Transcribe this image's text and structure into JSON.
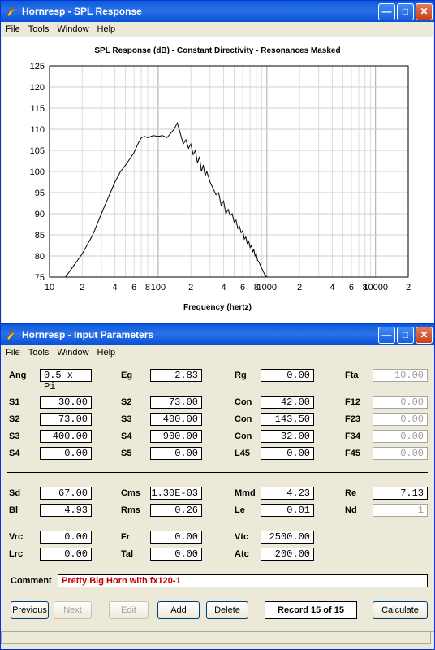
{
  "window1": {
    "title": "Hornresp - SPL Response",
    "menu": [
      "File",
      "Tools",
      "Window",
      "Help"
    ]
  },
  "window2": {
    "title": "Hornresp - Input Parameters",
    "menu": [
      "File",
      "Tools",
      "Window",
      "Help"
    ]
  },
  "chart_data": {
    "type": "line",
    "title": "SPL Response (dB) - Constant Directivity - Resonances Masked",
    "xlabel": "Frequency (hertz)",
    "ylabel": "",
    "x_scale": "log",
    "xlim": [
      10,
      20000
    ],
    "ylim": [
      75,
      125
    ],
    "y_ticks": [
      75,
      80,
      85,
      90,
      95,
      100,
      105,
      110,
      115,
      120,
      125
    ],
    "x_tick_labels": [
      "10",
      "2",
      "4",
      "6",
      "8",
      "100",
      "2",
      "4",
      "6",
      "8",
      "1000",
      "2",
      "4",
      "6",
      "8",
      "10000",
      "2"
    ],
    "x_tick_values": [
      10,
      20,
      40,
      60,
      80,
      100,
      200,
      400,
      600,
      800,
      1000,
      2000,
      4000,
      6000,
      8000,
      10000,
      20000
    ],
    "grid": true,
    "series": [
      {
        "color": "#000000",
        "x": [
          14,
          16,
          20,
          25,
          30,
          35,
          40,
          45,
          50,
          55,
          60,
          65,
          70,
          75,
          80,
          90,
          100,
          110,
          120,
          130,
          140,
          150,
          160,
          170,
          180,
          190,
          200,
          210,
          220,
          230,
          240,
          250,
          260,
          270,
          280,
          300,
          320,
          340,
          360,
          380,
          400,
          420,
          440,
          460,
          480,
          500,
          520,
          540,
          560,
          580,
          600,
          620,
          640,
          660,
          680,
          700,
          720,
          740,
          760,
          780,
          800,
          820,
          850,
          880,
          920,
          960,
          1000
        ],
        "y": [
          75,
          77,
          80.5,
          85,
          90,
          94,
          97.5,
          100,
          101.5,
          103,
          104.5,
          106.5,
          108,
          108.3,
          108,
          108.5,
          108.3,
          108.5,
          108,
          109,
          110,
          111.5,
          109,
          106.5,
          107.5,
          105.5,
          106.5,
          104,
          105,
          102,
          103.5,
          100,
          101.5,
          99,
          100,
          97.5,
          96,
          94.5,
          95,
          92,
          93,
          90,
          91,
          89.5,
          90,
          88,
          88.5,
          86.5,
          87,
          85.5,
          86,
          84,
          84.5,
          83,
          83.5,
          82,
          82.5,
          81,
          81.5,
          80,
          80.5,
          79,
          78.5,
          77.5,
          76.5,
          75.5,
          75
        ]
      }
    ]
  },
  "params": {
    "row0": [
      {
        "label": "Ang",
        "value": "0.5 x Pi",
        "disabled": false
      },
      {
        "label": "Eg",
        "value": "2.83",
        "disabled": false
      },
      {
        "label": "Rg",
        "value": "0.00",
        "disabled": false
      },
      {
        "label": "Fta",
        "value": "10.00",
        "disabled": true
      }
    ],
    "row1": [
      {
        "label": "S1",
        "value": "30.00",
        "disabled": false
      },
      {
        "label": "S2",
        "value": "73.00",
        "disabled": false
      },
      {
        "label": "Con",
        "value": "42.00",
        "disabled": false
      },
      {
        "label": "F12",
        "value": "0.00",
        "disabled": true
      }
    ],
    "row2": [
      {
        "label": "S2",
        "value": "73.00",
        "disabled": false
      },
      {
        "label": "S3",
        "value": "400.00",
        "disabled": false
      },
      {
        "label": "Con",
        "value": "143.50",
        "disabled": false
      },
      {
        "label": "F23",
        "value": "0.00",
        "disabled": true
      }
    ],
    "row3": [
      {
        "label": "S3",
        "value": "400.00",
        "disabled": false
      },
      {
        "label": "S4",
        "value": "900.00",
        "disabled": false
      },
      {
        "label": "Con",
        "value": "32.00",
        "disabled": false
      },
      {
        "label": "F34",
        "value": "0.00",
        "disabled": true
      }
    ],
    "row4": [
      {
        "label": "S4",
        "value": "0.00",
        "disabled": false
      },
      {
        "label": "S5",
        "value": "0.00",
        "disabled": false
      },
      {
        "label": "L45",
        "value": "0.00",
        "disabled": false
      },
      {
        "label": "F45",
        "value": "0.00",
        "disabled": true
      }
    ],
    "row5": [
      {
        "label": "Sd",
        "value": "67.00",
        "disabled": false
      },
      {
        "label": "Cms",
        "value": "1.30E-03",
        "disabled": false
      },
      {
        "label": "Mmd",
        "value": "4.23",
        "disabled": false
      },
      {
        "label": "Re",
        "value": "7.13",
        "disabled": false
      }
    ],
    "row6": [
      {
        "label": "Bl",
        "value": "4.93",
        "disabled": false
      },
      {
        "label": "Rms",
        "value": "0.26",
        "disabled": false
      },
      {
        "label": "Le",
        "value": "0.01",
        "disabled": false
      },
      {
        "label": "Nd",
        "value": "1",
        "disabled": true
      }
    ],
    "row7": [
      {
        "label": "Vrc",
        "value": "0.00",
        "disabled": false
      },
      {
        "label": "Fr",
        "value": "0.00",
        "disabled": false
      },
      {
        "label": "Vtc",
        "value": "2500.00",
        "disabled": false
      }
    ],
    "row8": [
      {
        "label": "Lrc",
        "value": "0.00",
        "disabled": false
      },
      {
        "label": "Tal",
        "value": "0.00",
        "disabled": false
      },
      {
        "label": "Atc",
        "value": "200.00",
        "disabled": false
      }
    ]
  },
  "comment": {
    "label": "Comment",
    "value": "Pretty Big Horn with fx120-1"
  },
  "buttons": {
    "previous": "Previous",
    "next": "Next",
    "edit": "Edit",
    "add": "Add",
    "delete": "Delete",
    "calculate": "Calculate"
  },
  "record": "Record 15 of 15"
}
